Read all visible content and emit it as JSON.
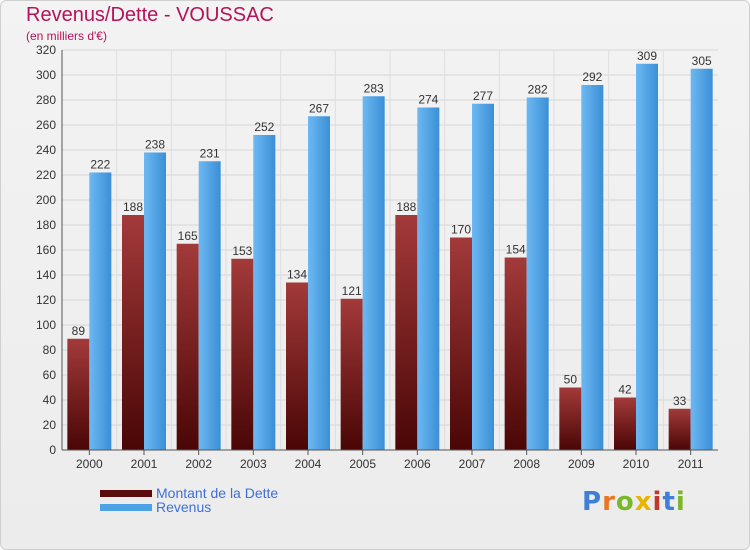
{
  "title": "Revenus/Dette - VOUSSAC",
  "subtitle": "(en milliers d'€)",
  "logo_text": "Proxiti",
  "chart_data": {
    "type": "bar",
    "title": "Revenus/Dette - VOUSSAC",
    "subtitle": "(en milliers d'€)",
    "categories": [
      "2000",
      "2001",
      "2002",
      "2003",
      "2004",
      "2005",
      "2006",
      "2007",
      "2008",
      "2009",
      "2010",
      "2011"
    ],
    "series": [
      {
        "name": "Montant de la Dette",
        "color": "#7a1a1a",
        "values": [
          89,
          188,
          165,
          153,
          134,
          121,
          188,
          170,
          154,
          50,
          42,
          33
        ]
      },
      {
        "name": "Revenus",
        "color": "#4da3e6",
        "values": [
          222,
          238,
          231,
          252,
          267,
          283,
          274,
          277,
          282,
          292,
          309,
          305
        ]
      }
    ],
    "ylim": [
      0,
      320
    ],
    "yticks": [
      0,
      20,
      40,
      60,
      80,
      100,
      120,
      140,
      160,
      180,
      200,
      220,
      240,
      260,
      280,
      300,
      320
    ],
    "grid": true,
    "legend_position": "bottom-left"
  }
}
